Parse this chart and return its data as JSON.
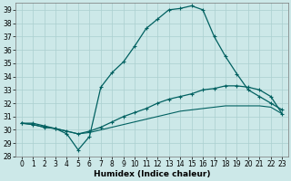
{
  "xlabel": "Humidex (Indice chaleur)",
  "xlim": [
    -0.5,
    23.5
  ],
  "ylim": [
    28,
    39.5
  ],
  "yticks": [
    28,
    29,
    30,
    31,
    32,
    33,
    34,
    35,
    36,
    37,
    38,
    39
  ],
  "xticks": [
    0,
    1,
    2,
    3,
    4,
    5,
    6,
    7,
    8,
    9,
    10,
    11,
    12,
    13,
    14,
    15,
    16,
    17,
    18,
    19,
    20,
    21,
    22,
    23
  ],
  "background_color": "#cce8e8",
  "grid_color": "#aacfcf",
  "line_color": "#006060",
  "line1_x": [
    0,
    1,
    2,
    3,
    4,
    5,
    6,
    7,
    8,
    9,
    10,
    11,
    12,
    13,
    14,
    15,
    16,
    17,
    18,
    19,
    20,
    21,
    22,
    23
  ],
  "line1_y": [
    30.5,
    30.5,
    30.3,
    30.1,
    29.7,
    28.5,
    29.5,
    33.2,
    34.3,
    35.1,
    36.3,
    37.6,
    38.3,
    39.0,
    39.1,
    39.3,
    39.0,
    37.0,
    35.5,
    34.2,
    33.0,
    32.5,
    32.0,
    31.5
  ],
  "line2_x": [
    0,
    1,
    2,
    3,
    4,
    5,
    6,
    7,
    8,
    9,
    10,
    11,
    12,
    13,
    14,
    15,
    16,
    17,
    18,
    19,
    20,
    21,
    22,
    23
  ],
  "line2_y": [
    30.5,
    30.4,
    30.2,
    30.1,
    29.9,
    29.7,
    29.9,
    30.2,
    30.6,
    31.0,
    31.3,
    31.6,
    32.0,
    32.3,
    32.5,
    32.7,
    33.0,
    33.1,
    33.3,
    33.3,
    33.2,
    33.0,
    32.5,
    31.2
  ],
  "line3_x": [
    0,
    1,
    2,
    3,
    4,
    5,
    6,
    7,
    8,
    9,
    10,
    11,
    12,
    13,
    14,
    15,
    16,
    17,
    18,
    19,
    20,
    21,
    22,
    23
  ],
  "line3_y": [
    30.5,
    30.4,
    30.2,
    30.1,
    29.9,
    29.7,
    29.8,
    30.0,
    30.2,
    30.4,
    30.6,
    30.8,
    31.0,
    31.2,
    31.4,
    31.5,
    31.6,
    31.7,
    31.8,
    31.8,
    31.8,
    31.8,
    31.7,
    31.2
  ],
  "tick_fontsize": 5.5,
  "label_fontsize": 6.5
}
